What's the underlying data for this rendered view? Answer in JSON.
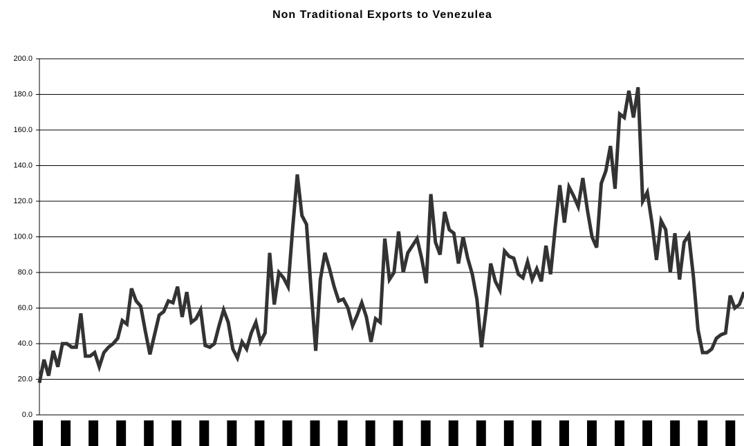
{
  "chart_data": {
    "type": "line",
    "title": "Non Traditional Exports to Venezulea",
    "categories": [
      null,
      null,
      null,
      null,
      null,
      null,
      null,
      null,
      null,
      null,
      null,
      null,
      null,
      null,
      null,
      null,
      null,
      null,
      null,
      null,
      null,
      null,
      null,
      null,
      null,
      null,
      null,
      null,
      null,
      null,
      null,
      null,
      null,
      null,
      null,
      null,
      null,
      null,
      null,
      null,
      null,
      null,
      null,
      null,
      null,
      null,
      null,
      null,
      null,
      null,
      null,
      null,
      null,
      null,
      null,
      null,
      null,
      null,
      null,
      null,
      null,
      null,
      null,
      null,
      null,
      null,
      null,
      null,
      null,
      null,
      null,
      null,
      null,
      null,
      null,
      null,
      null,
      null,
      null,
      null,
      null,
      null,
      null,
      null,
      null,
      null,
      null,
      null,
      null,
      null,
      null,
      null,
      null,
      null,
      null,
      null,
      null,
      null,
      null,
      null,
      null,
      null,
      null,
      null,
      null,
      null,
      null,
      null,
      null,
      null,
      null,
      null,
      null,
      null,
      null,
      null,
      null,
      null,
      null,
      null,
      null,
      null,
      null,
      null,
      null,
      null,
      null,
      null,
      null,
      null,
      null,
      null,
      null,
      null,
      null,
      null,
      null,
      null,
      null,
      null,
      null,
      null,
      null,
      null,
      null,
      null,
      null,
      null,
      null,
      null,
      null,
      null,
      null,
      null
    ],
    "series": [
      {
        "color": "#333333",
        "values": [
          18,
          31,
          22,
          36,
          27,
          40,
          40,
          38,
          38,
          57,
          33,
          33,
          35,
          27,
          35,
          38,
          40,
          43,
          53,
          51,
          71,
          64,
          61,
          47,
          34,
          45,
          56,
          58,
          64,
          63,
          72,
          55,
          69,
          52,
          54,
          59,
          39,
          38,
          40,
          50,
          59,
          52,
          37,
          32,
          41,
          37,
          46,
          52,
          41,
          46,
          91,
          62,
          80,
          77,
          72,
          105,
          135,
          112,
          107,
          70,
          36,
          76,
          91,
          82,
          72,
          64,
          65,
          60,
          50,
          56,
          63,
          55,
          41,
          54,
          52,
          99,
          76,
          80,
          103,
          80,
          91,
          95,
          99,
          88,
          74,
          124,
          97,
          90,
          114,
          104,
          102,
          85,
          100,
          88,
          79,
          65,
          38,
          59,
          85,
          75,
          70,
          92,
          89,
          88,
          79,
          77,
          86,
          76,
          82,
          75,
          95,
          79,
          105,
          129,
          108,
          128,
          123,
          117,
          133,
          115,
          100,
          94,
          130,
          137,
          151,
          127,
          169,
          167,
          182,
          167,
          184,
          120,
          125,
          108,
          87,
          109,
          104,
          80,
          102,
          76,
          97,
          101,
          78,
          48,
          35,
          35,
          37,
          43,
          45,
          46,
          67,
          60,
          62,
          69
        ]
      }
    ],
    "ylim": [
      0,
      200
    ],
    "yticks": [
      {
        "value": 0,
        "label": "0.0"
      },
      {
        "value": 20,
        "label": "20.0"
      },
      {
        "value": 40,
        "label": "40.0"
      },
      {
        "value": 60,
        "label": "60.0"
      },
      {
        "value": 80,
        "label": "80.0"
      },
      {
        "value": 100,
        "label": "100.0"
      },
      {
        "value": 120,
        "label": "120.0"
      },
      {
        "value": 140,
        "label": "140.0"
      },
      {
        "value": 160,
        "label": "160.0"
      },
      {
        "value": 180,
        "label": "180.0"
      },
      {
        "value": 200,
        "label": "200.0"
      }
    ],
    "grid": true
  }
}
